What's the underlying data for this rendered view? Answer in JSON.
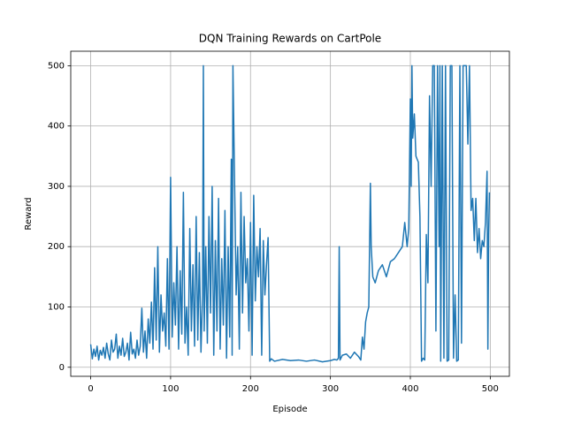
{
  "chart_data": {
    "type": "line",
    "title": "DQN Training Rewards on CartPole",
    "x_label": "Episode",
    "y_label": "Reward",
    "color": "#1f77b4",
    "grid": true,
    "xlim": [
      -24.95,
      523.95
    ],
    "ylim": [
      -15,
      524
    ],
    "xticks": [
      0,
      100,
      200,
      300,
      400,
      500
    ],
    "yticks": [
      0,
      100,
      200,
      300,
      400,
      500
    ],
    "x": [
      0,
      2,
      4,
      6,
      8,
      10,
      12,
      14,
      16,
      18,
      20,
      22,
      24,
      26,
      28,
      30,
      32,
      34,
      36,
      38,
      40,
      42,
      44,
      46,
      48,
      50,
      52,
      54,
      56,
      58,
      60,
      62,
      64,
      66,
      68,
      70,
      72,
      74,
      76,
      78,
      80,
      82,
      84,
      86,
      88,
      90,
      92,
      94,
      96,
      98,
      100,
      102,
      104,
      106,
      108,
      110,
      112,
      114,
      116,
      118,
      120,
      122,
      124,
      126,
      128,
      130,
      132,
      134,
      136,
      138,
      140,
      141,
      142,
      144,
      146,
      148,
      150,
      152,
      154,
      156,
      158,
      160,
      162,
      164,
      166,
      168,
      170,
      172,
      174,
      176,
      177,
      178,
      180,
      182,
      184,
      186,
      188,
      190,
      192,
      194,
      196,
      198,
      200,
      202,
      204,
      206,
      208,
      210,
      212,
      214,
      216,
      218,
      220,
      222,
      224,
      226,
      228,
      230,
      240,
      250,
      260,
      270,
      280,
      290,
      300,
      305,
      308,
      310,
      311,
      312,
      315,
      320,
      325,
      330,
      335,
      338,
      340,
      342,
      344,
      346,
      348,
      350,
      351,
      353,
      356,
      360,
      365,
      370,
      375,
      380,
      385,
      390,
      393,
      396,
      398,
      400,
      401,
      402,
      403,
      405,
      407,
      410,
      412,
      414,
      416,
      418,
      420,
      422,
      424,
      426,
      428,
      430,
      432,
      434,
      436,
      437,
      438,
      440,
      442,
      444,
      446,
      448,
      450,
      452,
      454,
      456,
      458,
      460,
      462,
      464,
      466,
      468,
      470,
      472,
      474,
      476,
      478,
      480,
      482,
      484,
      486,
      488,
      490,
      492,
      494,
      496,
      497,
      498,
      499
    ],
    "values": [
      38,
      14,
      30,
      18,
      35,
      12,
      28,
      20,
      33,
      15,
      40,
      22,
      12,
      45,
      25,
      30,
      55,
      15,
      35,
      20,
      48,
      18,
      25,
      40,
      12,
      58,
      22,
      30,
      15,
      45,
      20,
      35,
      98,
      25,
      60,
      15,
      80,
      40,
      108,
      30,
      165,
      45,
      200,
      25,
      120,
      60,
      90,
      35,
      180,
      30,
      315,
      50,
      140,
      70,
      200,
      30,
      160,
      55,
      290,
      40,
      100,
      20,
      230,
      60,
      170,
      35,
      250,
      45,
      190,
      25,
      120,
      500,
      60,
      200,
      40,
      250,
      90,
      300,
      20,
      210,
      60,
      280,
      30,
      180,
      70,
      260,
      15,
      200,
      50,
      345,
      20,
      500,
      310,
      120,
      200,
      30,
      290,
      90,
      250,
      140,
      180,
      60,
      240,
      20,
      285,
      110,
      200,
      150,
      230,
      20,
      210,
      120,
      170,
      215,
      10,
      14,
      12,
      10,
      13,
      11,
      12,
      10,
      12,
      9,
      11,
      13,
      12,
      15,
      200,
      12,
      20,
      22,
      15,
      25,
      18,
      12,
      50,
      30,
      75,
      90,
      100,
      305,
      200,
      150,
      140,
      160,
      170,
      150,
      175,
      180,
      190,
      200,
      240,
      200,
      230,
      445,
      300,
      500,
      380,
      420,
      350,
      340,
      250,
      10,
      15,
      12,
      220,
      140,
      450,
      300,
      500,
      500,
      60,
      500,
      200,
      500,
      10,
      500,
      15,
      500,
      10,
      12,
      500,
      500,
      15,
      120,
      10,
      12,
      500,
      40,
      500,
      500,
      500,
      370,
      500,
      260,
      280,
      210,
      280,
      190,
      230,
      180,
      210,
      200,
      240,
      325,
      30,
      220,
      290
    ]
  }
}
